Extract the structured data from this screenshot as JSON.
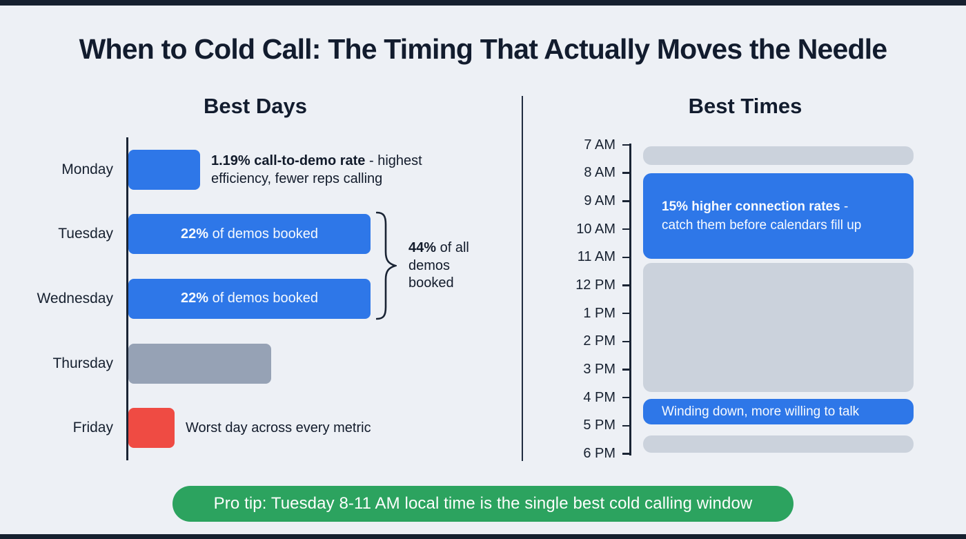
{
  "page_title": "When to Cold Call: The Timing That Actually Moves the Needle",
  "pro_tip": "Pro tip: Tuesday 8-11 AM local time is the single best cold calling window",
  "colors": {
    "blue": "#2e77e8",
    "gray": "#cbd2dc",
    "gray_dark": "#96a2b5",
    "red": "#ef4b43",
    "green": "#2ca35f",
    "ink": "#16202f",
    "background": "#edf0f5"
  },
  "chart_data": [
    {
      "type": "bar",
      "title": "Best Days",
      "orientation": "horizontal",
      "x_unit": "share of demos booked (%), unlabeled bars estimated from length",
      "bars": [
        {
          "day": "Monday",
          "value": 6.5,
          "color": "blue",
          "annotation_bold": "1.19% call-to-demo rate",
          "annotation_rest": " - highest efficiency, fewer reps calling"
        },
        {
          "day": "Tuesday",
          "value": 22,
          "color": "blue",
          "bar_text_bold": "22%",
          "bar_text_rest": " of demos booked"
        },
        {
          "day": "Wednesday",
          "value": 22,
          "color": "blue",
          "bar_text_bold": "22%",
          "bar_text_rest": " of demos booked"
        },
        {
          "day": "Thursday",
          "value": 13,
          "color": "gray_dark"
        },
        {
          "day": "Friday",
          "value": 4.2,
          "color": "red",
          "annotation": "Worst day across every metric"
        }
      ],
      "bracket": {
        "spans": [
          "Tuesday",
          "Wednesday"
        ],
        "label_bold": "44%",
        "label_rest": " of all demos booked"
      }
    },
    {
      "type": "schedule",
      "title": "Best Times",
      "axis_ticks": [
        "7 AM",
        "8 AM",
        "9 AM",
        "10 AM",
        "11 AM",
        "12 PM",
        "1 PM",
        "2 PM",
        "3 PM",
        "4 PM",
        "5 PM",
        "6 PM"
      ],
      "blocks": [
        {
          "start": 7.05,
          "end": 7.7,
          "color": "gray",
          "label": ""
        },
        {
          "start": 8,
          "end": 11.05,
          "color": "blue",
          "label_bold": "15% higher connection rates",
          "label_tail": " -",
          "label_line2": "catch them before calendars fill up"
        },
        {
          "start": 11.2,
          "end": 15.8,
          "color": "gray",
          "label": ""
        },
        {
          "start": 16.05,
          "end": 16.95,
          "color": "blue",
          "label": "Winding down, more willing to talk"
        },
        {
          "start": 17.35,
          "end": 17.95,
          "color": "gray",
          "label": ""
        }
      ]
    }
  ]
}
